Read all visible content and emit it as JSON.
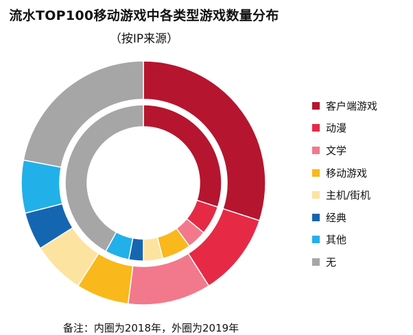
{
  "title": "流水TOP100移动游戏中各类型游戏数量分布",
  "subtitle": "（按IP来源）",
  "note": "备注：内圈为2018年，外圈为2019年",
  "chart_data": {
    "type": "pie",
    "title": "流水TOP100移动游戏中各类型游戏数量分布",
    "subtitle": "（按IP来源）",
    "categories": [
      "客户端游戏",
      "动漫",
      "文学",
      "移动游戏",
      "主机/街机",
      "经典",
      "其他",
      "无"
    ],
    "colors": [
      "#b5152f",
      "#e62a46",
      "#f2798b",
      "#f9b81c",
      "#fde3a0",
      "#1566b0",
      "#22b0e9",
      "#a6a6a6"
    ],
    "series": [
      {
        "name": "2018年",
        "ring": "inner",
        "values": [
          30,
          6,
          4,
          6,
          4,
          3,
          5,
          42
        ]
      },
      {
        "name": "2019年",
        "ring": "outer",
        "values": [
          30,
          11,
          11,
          7,
          7,
          5,
          7,
          22
        ]
      }
    ],
    "legend_position": "right"
  }
}
